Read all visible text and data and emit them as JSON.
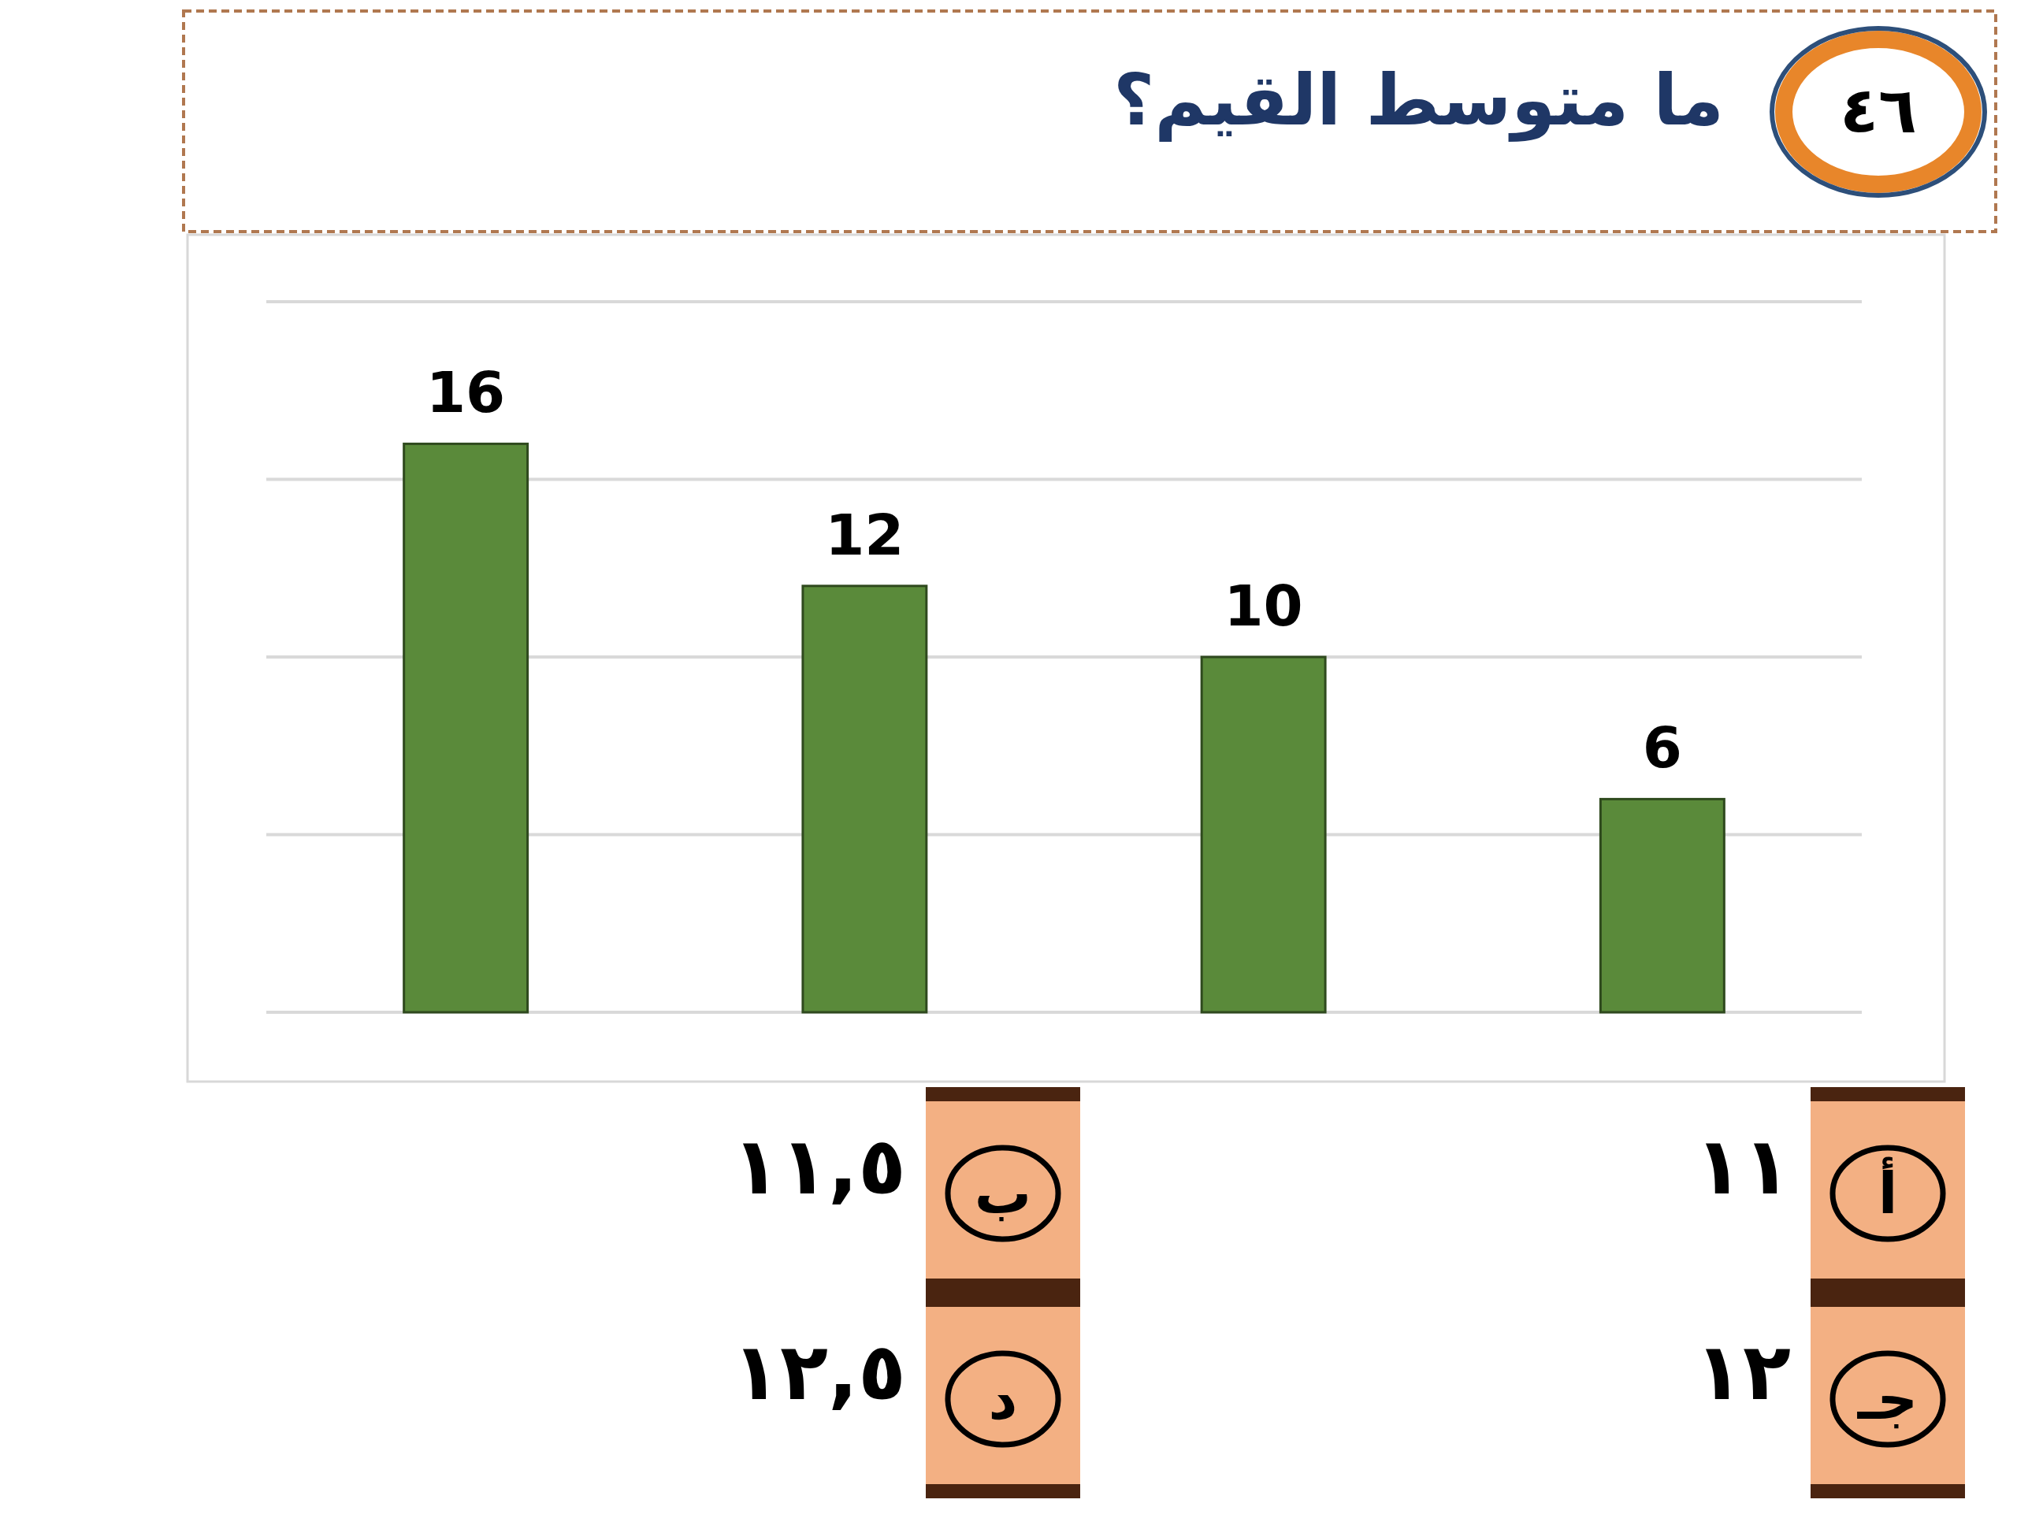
{
  "chart_data": {
    "type": "bar",
    "title": "ما متوسط القيم؟",
    "categories": [
      null,
      null,
      null,
      null
    ],
    "values": [
      16,
      12,
      10,
      6
    ],
    "color": "#5a8a3a",
    "ylim": [
      0,
      20
    ],
    "yticks": [
      {
        "value": 0,
        "label": null
      },
      {
        "value": 5,
        "label": null
      },
      {
        "value": 10,
        "label": null
      },
      {
        "value": 15,
        "label": null
      },
      {
        "value": 20,
        "label": null
      }
    ],
    "grid": "y",
    "data_labels": true,
    "annotations": [
      "٤٦",
      "أ",
      "١١",
      "ب",
      "١١,٥",
      "جـ",
      "١٢",
      "د",
      "١٢,٥"
    ]
  }
}
